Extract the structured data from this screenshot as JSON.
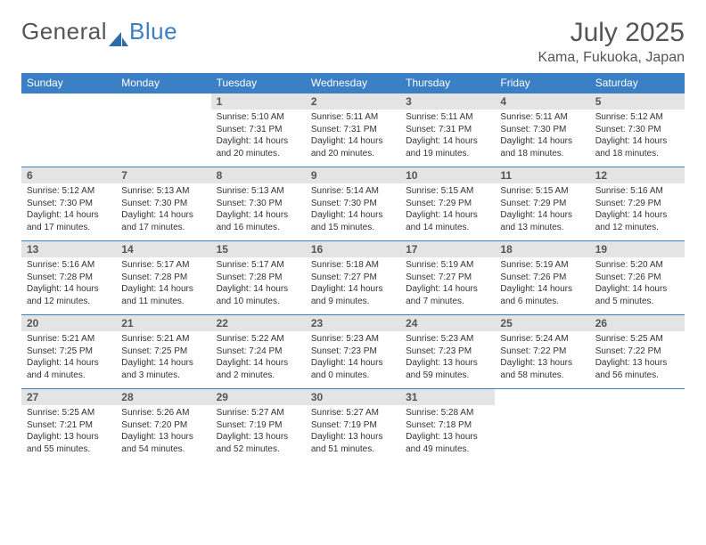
{
  "logo": {
    "text1": "General",
    "text2": "Blue"
  },
  "title": "July 2025",
  "location": "Kama, Fukuoka, Japan",
  "colors": {
    "header_bg": "#3b7fc4",
    "header_text": "#ffffff",
    "daynum_bg": "#e4e4e4",
    "rule": "#3b7fc4",
    "text": "#333333",
    "muted": "#555555",
    "page_bg": "#ffffff"
  },
  "day_headers": [
    "Sunday",
    "Monday",
    "Tuesday",
    "Wednesday",
    "Thursday",
    "Friday",
    "Saturday"
  ],
  "weeks": [
    [
      {
        "n": "",
        "sr": "",
        "ss": "",
        "dl": ""
      },
      {
        "n": "",
        "sr": "",
        "ss": "",
        "dl": ""
      },
      {
        "n": "1",
        "sr": "Sunrise: 5:10 AM",
        "ss": "Sunset: 7:31 PM",
        "dl": "Daylight: 14 hours and 20 minutes."
      },
      {
        "n": "2",
        "sr": "Sunrise: 5:11 AM",
        "ss": "Sunset: 7:31 PM",
        "dl": "Daylight: 14 hours and 20 minutes."
      },
      {
        "n": "3",
        "sr": "Sunrise: 5:11 AM",
        "ss": "Sunset: 7:31 PM",
        "dl": "Daylight: 14 hours and 19 minutes."
      },
      {
        "n": "4",
        "sr": "Sunrise: 5:11 AM",
        "ss": "Sunset: 7:30 PM",
        "dl": "Daylight: 14 hours and 18 minutes."
      },
      {
        "n": "5",
        "sr": "Sunrise: 5:12 AM",
        "ss": "Sunset: 7:30 PM",
        "dl": "Daylight: 14 hours and 18 minutes."
      }
    ],
    [
      {
        "n": "6",
        "sr": "Sunrise: 5:12 AM",
        "ss": "Sunset: 7:30 PM",
        "dl": "Daylight: 14 hours and 17 minutes."
      },
      {
        "n": "7",
        "sr": "Sunrise: 5:13 AM",
        "ss": "Sunset: 7:30 PM",
        "dl": "Daylight: 14 hours and 17 minutes."
      },
      {
        "n": "8",
        "sr": "Sunrise: 5:13 AM",
        "ss": "Sunset: 7:30 PM",
        "dl": "Daylight: 14 hours and 16 minutes."
      },
      {
        "n": "9",
        "sr": "Sunrise: 5:14 AM",
        "ss": "Sunset: 7:30 PM",
        "dl": "Daylight: 14 hours and 15 minutes."
      },
      {
        "n": "10",
        "sr": "Sunrise: 5:15 AM",
        "ss": "Sunset: 7:29 PM",
        "dl": "Daylight: 14 hours and 14 minutes."
      },
      {
        "n": "11",
        "sr": "Sunrise: 5:15 AM",
        "ss": "Sunset: 7:29 PM",
        "dl": "Daylight: 14 hours and 13 minutes."
      },
      {
        "n": "12",
        "sr": "Sunrise: 5:16 AM",
        "ss": "Sunset: 7:29 PM",
        "dl": "Daylight: 14 hours and 12 minutes."
      }
    ],
    [
      {
        "n": "13",
        "sr": "Sunrise: 5:16 AM",
        "ss": "Sunset: 7:28 PM",
        "dl": "Daylight: 14 hours and 12 minutes."
      },
      {
        "n": "14",
        "sr": "Sunrise: 5:17 AM",
        "ss": "Sunset: 7:28 PM",
        "dl": "Daylight: 14 hours and 11 minutes."
      },
      {
        "n": "15",
        "sr": "Sunrise: 5:17 AM",
        "ss": "Sunset: 7:28 PM",
        "dl": "Daylight: 14 hours and 10 minutes."
      },
      {
        "n": "16",
        "sr": "Sunrise: 5:18 AM",
        "ss": "Sunset: 7:27 PM",
        "dl": "Daylight: 14 hours and 9 minutes."
      },
      {
        "n": "17",
        "sr": "Sunrise: 5:19 AM",
        "ss": "Sunset: 7:27 PM",
        "dl": "Daylight: 14 hours and 7 minutes."
      },
      {
        "n": "18",
        "sr": "Sunrise: 5:19 AM",
        "ss": "Sunset: 7:26 PM",
        "dl": "Daylight: 14 hours and 6 minutes."
      },
      {
        "n": "19",
        "sr": "Sunrise: 5:20 AM",
        "ss": "Sunset: 7:26 PM",
        "dl": "Daylight: 14 hours and 5 minutes."
      }
    ],
    [
      {
        "n": "20",
        "sr": "Sunrise: 5:21 AM",
        "ss": "Sunset: 7:25 PM",
        "dl": "Daylight: 14 hours and 4 minutes."
      },
      {
        "n": "21",
        "sr": "Sunrise: 5:21 AM",
        "ss": "Sunset: 7:25 PM",
        "dl": "Daylight: 14 hours and 3 minutes."
      },
      {
        "n": "22",
        "sr": "Sunrise: 5:22 AM",
        "ss": "Sunset: 7:24 PM",
        "dl": "Daylight: 14 hours and 2 minutes."
      },
      {
        "n": "23",
        "sr": "Sunrise: 5:23 AM",
        "ss": "Sunset: 7:23 PM",
        "dl": "Daylight: 14 hours and 0 minutes."
      },
      {
        "n": "24",
        "sr": "Sunrise: 5:23 AM",
        "ss": "Sunset: 7:23 PM",
        "dl": "Daylight: 13 hours and 59 minutes."
      },
      {
        "n": "25",
        "sr": "Sunrise: 5:24 AM",
        "ss": "Sunset: 7:22 PM",
        "dl": "Daylight: 13 hours and 58 minutes."
      },
      {
        "n": "26",
        "sr": "Sunrise: 5:25 AM",
        "ss": "Sunset: 7:22 PM",
        "dl": "Daylight: 13 hours and 56 minutes."
      }
    ],
    [
      {
        "n": "27",
        "sr": "Sunrise: 5:25 AM",
        "ss": "Sunset: 7:21 PM",
        "dl": "Daylight: 13 hours and 55 minutes."
      },
      {
        "n": "28",
        "sr": "Sunrise: 5:26 AM",
        "ss": "Sunset: 7:20 PM",
        "dl": "Daylight: 13 hours and 54 minutes."
      },
      {
        "n": "29",
        "sr": "Sunrise: 5:27 AM",
        "ss": "Sunset: 7:19 PM",
        "dl": "Daylight: 13 hours and 52 minutes."
      },
      {
        "n": "30",
        "sr": "Sunrise: 5:27 AM",
        "ss": "Sunset: 7:19 PM",
        "dl": "Daylight: 13 hours and 51 minutes."
      },
      {
        "n": "31",
        "sr": "Sunrise: 5:28 AM",
        "ss": "Sunset: 7:18 PM",
        "dl": "Daylight: 13 hours and 49 minutes."
      },
      {
        "n": "",
        "sr": "",
        "ss": "",
        "dl": ""
      },
      {
        "n": "",
        "sr": "",
        "ss": "",
        "dl": ""
      }
    ]
  ]
}
